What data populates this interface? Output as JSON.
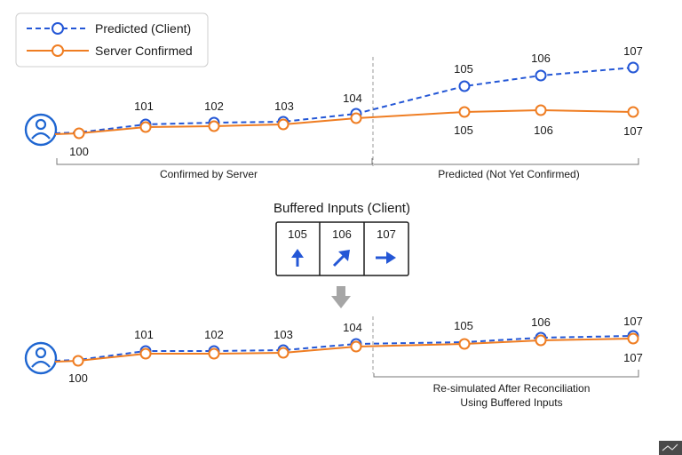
{
  "legend": {
    "predicted_label": "Predicted (Client)",
    "confirmed_label": "Server Confirmed"
  },
  "colors": {
    "predicted": "#2457d6",
    "confirmed": "#ef7d22",
    "avatar": "#1f66d1",
    "marker": "#555555",
    "divider": "#999999",
    "down_arrow": "#a6a6a6"
  },
  "icons": {
    "avatar": "user-avatar-icon",
    "down_arrow": "down-arrow-icon",
    "corner": "corner-glyph-icon"
  },
  "top": {
    "ticks": [
      "100",
      "101",
      "102",
      "103",
      "104",
      "105",
      "106",
      "107"
    ],
    "confirmed_section_label": "Confirmed by Server",
    "predicted_section_label": "Predicted (Not Yet Confirmed)"
  },
  "buffer": {
    "title": "Buffered Inputs (Client)",
    "cells": [
      {
        "tick": "105",
        "arrow": "up-arrow-icon"
      },
      {
        "tick": "106",
        "arrow": "up-right-arrow-icon"
      },
      {
        "tick": "107",
        "arrow": "right-arrow-icon"
      }
    ]
  },
  "bottom": {
    "ticks": [
      "100",
      "101",
      "102",
      "103",
      "104",
      "105",
      "106",
      "107"
    ],
    "resim_label_line1": "Re-simulated After Reconciliation",
    "resim_label_line2": "Using Buffered Inputs"
  }
}
